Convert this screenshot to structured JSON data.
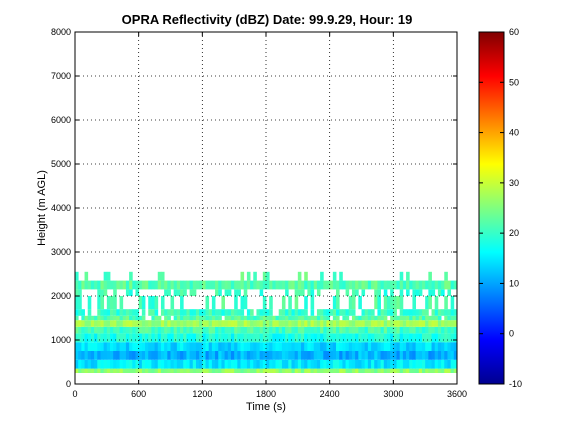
{
  "chart_data": {
    "type": "heatmap",
    "title": "OPRA Reflectivity (dBZ)  Date: 99.9.29, Hour: 19",
    "xlabel": "Time (s)",
    "ylabel": "Height (m AGL)",
    "xlim": [
      0,
      3600
    ],
    "ylim": [
      0,
      8000
    ],
    "x_ticks": [
      "0",
      "600",
      "1200",
      "1800",
      "2400",
      "3000",
      "3600"
    ],
    "y_ticks": [
      "0",
      "1000",
      "2000",
      "3000",
      "4000",
      "5000",
      "6000",
      "7000",
      "8000"
    ],
    "grid": true,
    "colorbar": {
      "range": [
        -10,
        60
      ],
      "ticks": [
        "-10",
        "0",
        "10",
        "20",
        "30",
        "40",
        "50",
        "60"
      ],
      "colormap": "jet"
    },
    "layers": [
      {
        "bottom_m": 250,
        "top_m": 350,
        "dbz": 26,
        "coverage": 1.0
      },
      {
        "bottom_m": 350,
        "top_m": 550,
        "dbz": 15,
        "coverage": 1.0
      },
      {
        "bottom_m": 550,
        "top_m": 750,
        "dbz": 11,
        "coverage": 1.0
      },
      {
        "bottom_m": 750,
        "top_m": 950,
        "dbz": 14,
        "coverage": 1.0
      },
      {
        "bottom_m": 950,
        "top_m": 1150,
        "dbz": 18,
        "coverage": 1.0
      },
      {
        "bottom_m": 1150,
        "top_m": 1300,
        "dbz": 21,
        "coverage": 1.0
      },
      {
        "bottom_m": 1300,
        "top_m": 1450,
        "dbz": 27,
        "coverage": 1.0
      },
      {
        "bottom_m": 1450,
        "top_m": 1550,
        "dbz": 22,
        "coverage": 0.9
      },
      {
        "bottom_m": 1550,
        "top_m": 1700,
        "dbz": 20,
        "coverage": 0.85
      },
      {
        "bottom_m": 1700,
        "top_m": 2000,
        "dbz": 21,
        "coverage": 0.35
      },
      {
        "bottom_m": 2000,
        "top_m": 2150,
        "dbz": 20,
        "coverage": 0.55
      },
      {
        "bottom_m": 2150,
        "top_m": 2350,
        "dbz": 22,
        "coverage": 1.0
      },
      {
        "bottom_m": 2350,
        "top_m": 2550,
        "dbz": 22,
        "coverage": 0.2
      }
    ]
  }
}
